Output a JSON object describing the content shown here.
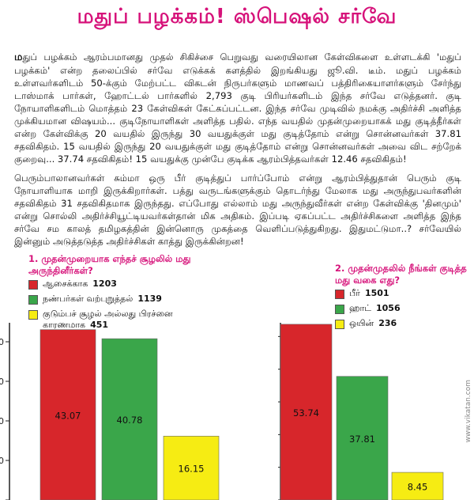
{
  "title": "மதுப் பழக்கம்! ஸ்பெஷல் சர்வே",
  "article": {
    "dropcap": "ம",
    "p1": "துப் பழக்கம் ஆரம்பமானது முதல் சிகிச்சை பெறுவது வரையிலான கேள்விகளை உள்ளடக்கி 'மதுப் பழக்கம்' என்ற தலைப்பில் சர்வே எடுக்கக் களத்தில் இறங்கியது ஜூ.வி. டீம். மதுப் பழக்கம் உள்ளவர்களிடம் 50-க்கும் மேற்பட்ட விகடன் நிருபர்களும் மாணவப் பத்திரிகையாளர்களும் சேர்ந்து டாஸ்மாக் பார்கள், ஹோட்டல் பார்களில் 2,793 குடி பிரியர்களிடம் இந்த சர்வே எடுத்தனர். குடி நோயாளிகளிடம் மொத்தம் 23 கேள்விகள் கேட்கப்பட்டன. இந்த சர்வே முடிவில் நமக்கு அதிர்ச்சி அளித்த முக்கியமான விஷயம்... குடிநோயாளிகள் அளித்த பதில். எந்த வயதில் முதன்முறையாகக் மது குடித்தீர்கள் என்ற கேள்விக்கு 20 வயதில் இருந்து 30 வயதுக்குள் மது குடித்தோம் என்று சொன்னவர்கள் 37.81 சதவிகிதம். 15 வயதில் இருந்து 20 வயதுக்குள் மது குடித்தோம் என்று சொன்னவர்கள் அவை விட சற்றேக் குறைவு... 37.74 சதவிகிதம்! 15 வயதுக்கு முன்பே குடிக்க ஆரம்பித்தவர்கள் 12.46 சதவிகிதம்!",
    "p2": "பெரும்பாலானவர்கள் சும்மா ஒரு பீர் குடித்துப் பார்ப்போம் என்று ஆரம்பித்துதான் பெரும் குடி நோயாளியாக மாறி இருக்கிறார்கள். பத்து வருடங்களுக்கும் தொடர்ந்து மேலாக மது அருந்துபவர்களின் சதவிகிதம் 31 சதவிகிதமாக இருந்தது. எப்போது எல்லாம் மது அருந்துவீர்கள் என்ற கேள்விக்கு 'தினமும்' என்று சொல்லி அதிர்ச்சியூட்டியவர்கள்தான் மிக அதிகம். இப்படி ஏகப்பட்ட அதிர்ச்சிகளை அளித்த இந்த சர்வே சம காலத் தமிழகத்தின் இன்னொரு முகத்தை வெளிப்படுத்துகிறது. இதுமட்டுமா..? சர்வேயில் இன்னும் அடுத்தடுத்த அதிர்ச்சிகள் காத்து இருக்கின்றன!"
  },
  "credit": "www.vikatan.com",
  "chart_data": [
    {
      "type": "bar",
      "title": "1. முதன்முறையாக எந்தச் சூழலில் மது அருந்தினீர்கள்?",
      "categories": [
        "ஆசைக்காக",
        "நண்பர்கள் வற்புறுத்தல்",
        "குடும்பச் சூழல் அல்லது பிரச்னை காரணமாக"
      ],
      "counts": [
        1203,
        1139,
        451
      ],
      "values": [
        43.07,
        40.78,
        16.15
      ],
      "value_labels": [
        "43.07",
        "40.78",
        "16.15"
      ],
      "colors": [
        "#d7262b",
        "#3aa64a",
        "#f6ec13"
      ],
      "ylim": [
        0,
        50
      ],
      "yticks": [
        "0",
        "10",
        "20",
        "30",
        "40"
      ],
      "grid": false,
      "legend": "top-left"
    },
    {
      "type": "bar",
      "title": "2. முதன்முதலில் நீங்கள் குடித்த மது வகை எது?",
      "categories": [
        "பீர்",
        "ஹாட்",
        "ஒயின்"
      ],
      "counts": [
        1501,
        1056,
        236
      ],
      "values": [
        53.74,
        37.81,
        8.45
      ],
      "value_labels": [
        "53.74",
        "37.81",
        "8.45"
      ],
      "colors": [
        "#d7262b",
        "#3aa64a",
        "#f6ec13"
      ],
      "ylim": [
        0,
        60
      ],
      "yticks": [
        "0",
        "10",
        "20",
        "30",
        "40",
        "50"
      ],
      "grid": false,
      "legend": "top-left"
    }
  ]
}
